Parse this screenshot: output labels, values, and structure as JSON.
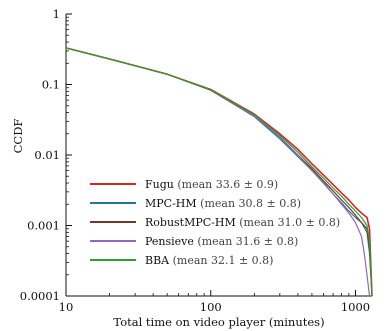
{
  "chart_data": {
    "type": "line",
    "xlabel": "Total time on video player (minutes)",
    "ylabel": "CCDF",
    "xscale": "log",
    "yscale": "log",
    "xlim": [
      10,
      1300
    ],
    "ylim": [
      0.0001,
      1
    ],
    "x_ticks": [
      {
        "value": 10,
        "label": "10"
      },
      {
        "value": 100,
        "label": "100"
      },
      {
        "value": 1000,
        "label": "1000"
      }
    ],
    "y_ticks": [
      {
        "value": 1,
        "label": "1"
      },
      {
        "value": 0.1,
        "label": "0.1"
      },
      {
        "value": 0.01,
        "label": "0.01"
      },
      {
        "value": 0.001,
        "label": "0.001"
      },
      {
        "value": 0.0001,
        "label": "0.0001"
      }
    ],
    "grid": false,
    "legend_position": "bottom-left",
    "series": [
      {
        "name": "Fugu",
        "stat_label": "(mean 33.6 ± 0.9)",
        "color": "#d62728",
        "x": [
          10,
          20,
          50,
          100,
          200,
          300,
          400,
          500,
          600,
          700,
          800,
          900,
          1000,
          1100,
          1200,
          1250,
          1300
        ],
        "y": [
          0.33,
          0.23,
          0.14,
          0.085,
          0.038,
          0.02,
          0.012,
          0.0075,
          0.0052,
          0.0038,
          0.0029,
          0.0023,
          0.0018,
          0.0015,
          0.0013,
          0.0009,
          0.0001
        ]
      },
      {
        "name": "MPC-HM",
        "stat_label": "(mean 30.8 ± 0.8)",
        "color": "#1f7a99",
        "x": [
          10,
          20,
          50,
          100,
          200,
          300,
          400,
          500,
          600,
          700,
          800,
          900,
          1000,
          1100,
          1200,
          1250,
          1300
        ],
        "y": [
          0.33,
          0.23,
          0.14,
          0.083,
          0.035,
          0.017,
          0.0095,
          0.006,
          0.004,
          0.0028,
          0.0021,
          0.0016,
          0.0013,
          0.0011,
          0.0008,
          0.0004,
          0.0001
        ]
      },
      {
        "name": "RobustMPC-HM",
        "stat_label": "(mean 31.0 ± 0.8)",
        "color": "#6b3a2a",
        "x": [
          10,
          20,
          50,
          100,
          200,
          300,
          400,
          500,
          600,
          700,
          800,
          900,
          1000,
          1100,
          1200,
          1250,
          1300
        ],
        "y": [
          0.33,
          0.23,
          0.14,
          0.083,
          0.036,
          0.018,
          0.01,
          0.0064,
          0.0043,
          0.0031,
          0.0023,
          0.0018,
          0.0014,
          0.0011,
          0.0009,
          0.0005,
          0.0001
        ]
      },
      {
        "name": "Pensieve",
        "stat_label": "(mean 31.6 ± 0.8)",
        "color": "#9467bd",
        "x": [
          10,
          20,
          50,
          100,
          200,
          300,
          400,
          500,
          600,
          700,
          800,
          900,
          1000,
          1100,
          1150,
          1200,
          1250
        ],
        "y": [
          0.33,
          0.23,
          0.14,
          0.084,
          0.036,
          0.018,
          0.0098,
          0.006,
          0.0041,
          0.0028,
          0.002,
          0.0015,
          0.0011,
          0.0007,
          0.0004,
          0.0002,
          0.0001
        ]
      },
      {
        "name": "BBA",
        "stat_label": "(mean 32.1 ± 0.8)",
        "color": "#2ca02c",
        "x": [
          10,
          20,
          50,
          100,
          200,
          300,
          400,
          500,
          600,
          700,
          800,
          900,
          1000,
          1100,
          1200,
          1250,
          1300
        ],
        "y": [
          0.33,
          0.23,
          0.14,
          0.084,
          0.037,
          0.019,
          0.011,
          0.0068,
          0.0047,
          0.0034,
          0.0026,
          0.002,
          0.0016,
          0.0013,
          0.001,
          0.0006,
          0.0001
        ]
      }
    ]
  }
}
